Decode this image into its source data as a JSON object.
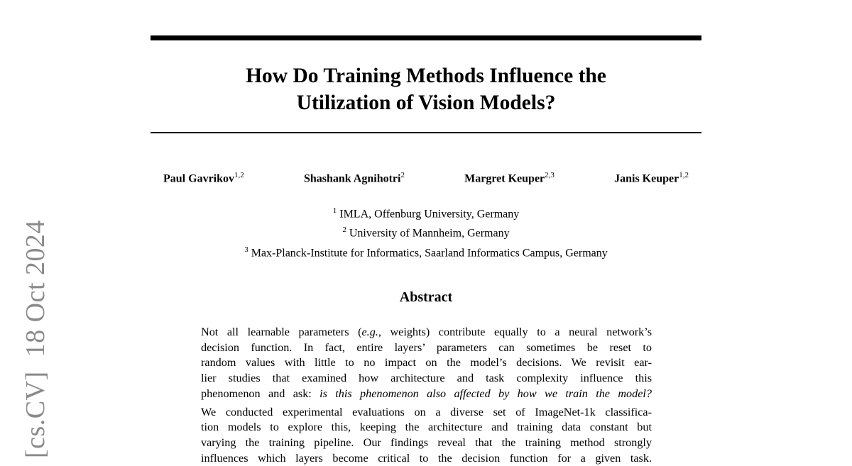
{
  "arxiv_stamp": "[cs.CV]  18 Oct 2024",
  "header": {
    "title_lines": [
      "How Do Training Methods Influence the",
      "Utilization of Vision Models?"
    ]
  },
  "authors": [
    {
      "name": "Paul Gavrikov",
      "affil": "1,2"
    },
    {
      "name": "Shashank Agnihotri",
      "affil": "2"
    },
    {
      "name": "Margret Keuper",
      "affil": "2,3"
    },
    {
      "name": "Janis Keuper",
      "affil": "1,2"
    }
  ],
  "affiliations": [
    {
      "num": "1",
      "text": "IMLA, Offenburg University, Germany"
    },
    {
      "num": "2",
      "text": "University of Mannheim, Germany"
    },
    {
      "num": "3",
      "text": "Max-Planck-Institute for Informatics, Saarland Informatics Campus, Germany"
    }
  ],
  "abstract": {
    "heading": "Abstract",
    "paragraphs": [
      [
        [
          {
            "text": "Not all learnable parameters ("
          },
          {
            "text": "e.g.",
            "italic": true
          },
          {
            "text": ", weights) contribute equally to a neural network’s"
          }
        ],
        [
          {
            "text": "decision function.  In fact, entire layers’ parameters can sometimes be reset to"
          }
        ],
        [
          {
            "text": "random values with little to no impact on the model’s decisions. We revisit ear-"
          }
        ],
        [
          {
            "text": "lier studies that examined how architecture and task complexity influence this"
          }
        ],
        [
          {
            "text": "phenomenon and ask: "
          },
          {
            "text": "is this phenomenon also affected by how we train the model?",
            "italic": true
          }
        ]
      ],
      [
        [
          {
            "text": "We conducted experimental evaluations on a diverse set of ImageNet-1k classifica-"
          }
        ],
        [
          {
            "text": "tion models to explore this, keeping the architecture and training data constant but"
          }
        ],
        [
          {
            "text": "varying the training pipeline. Our findings reveal that the training method strongly"
          }
        ],
        [
          {
            "text": "influences which layers become critical to the decision function for a given task."
          }
        ]
      ]
    ]
  }
}
